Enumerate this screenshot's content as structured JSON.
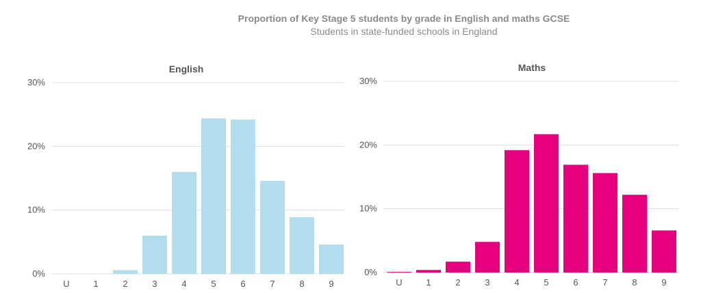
{
  "title": "Proportion of Key Stage 5 students by grade in English and maths GCSE",
  "subtitle": "Students in state-funded schools in England",
  "chart_data": [
    {
      "type": "bar",
      "title": "English",
      "categories": [
        "U",
        "1",
        "2",
        "3",
        "4",
        "5",
        "6",
        "7",
        "8",
        "9"
      ],
      "values": [
        0.0,
        0.0,
        0.6,
        6.0,
        16.0,
        24.4,
        24.2,
        14.6,
        8.9,
        4.6
      ],
      "ylim": [
        0,
        30
      ],
      "yticks": [
        0,
        10,
        20,
        30
      ],
      "ytick_labels": [
        "0%",
        "10%",
        "20%",
        "30%"
      ],
      "color": "#b3dcec",
      "grid": true
    },
    {
      "type": "bar",
      "title": "Maths",
      "categories": [
        "U",
        "1",
        "2",
        "3",
        "4",
        "5",
        "6",
        "7",
        "8",
        "9"
      ],
      "values": [
        0.1,
        0.4,
        1.7,
        4.8,
        19.2,
        21.7,
        16.9,
        15.6,
        12.2,
        6.6
      ],
      "ylim": [
        0,
        30
      ],
      "yticks": [
        0,
        10,
        20,
        30
      ],
      "ytick_labels": [
        "0%",
        "10%",
        "20%",
        "30%"
      ],
      "color": "#e6007e",
      "grid": true
    }
  ]
}
